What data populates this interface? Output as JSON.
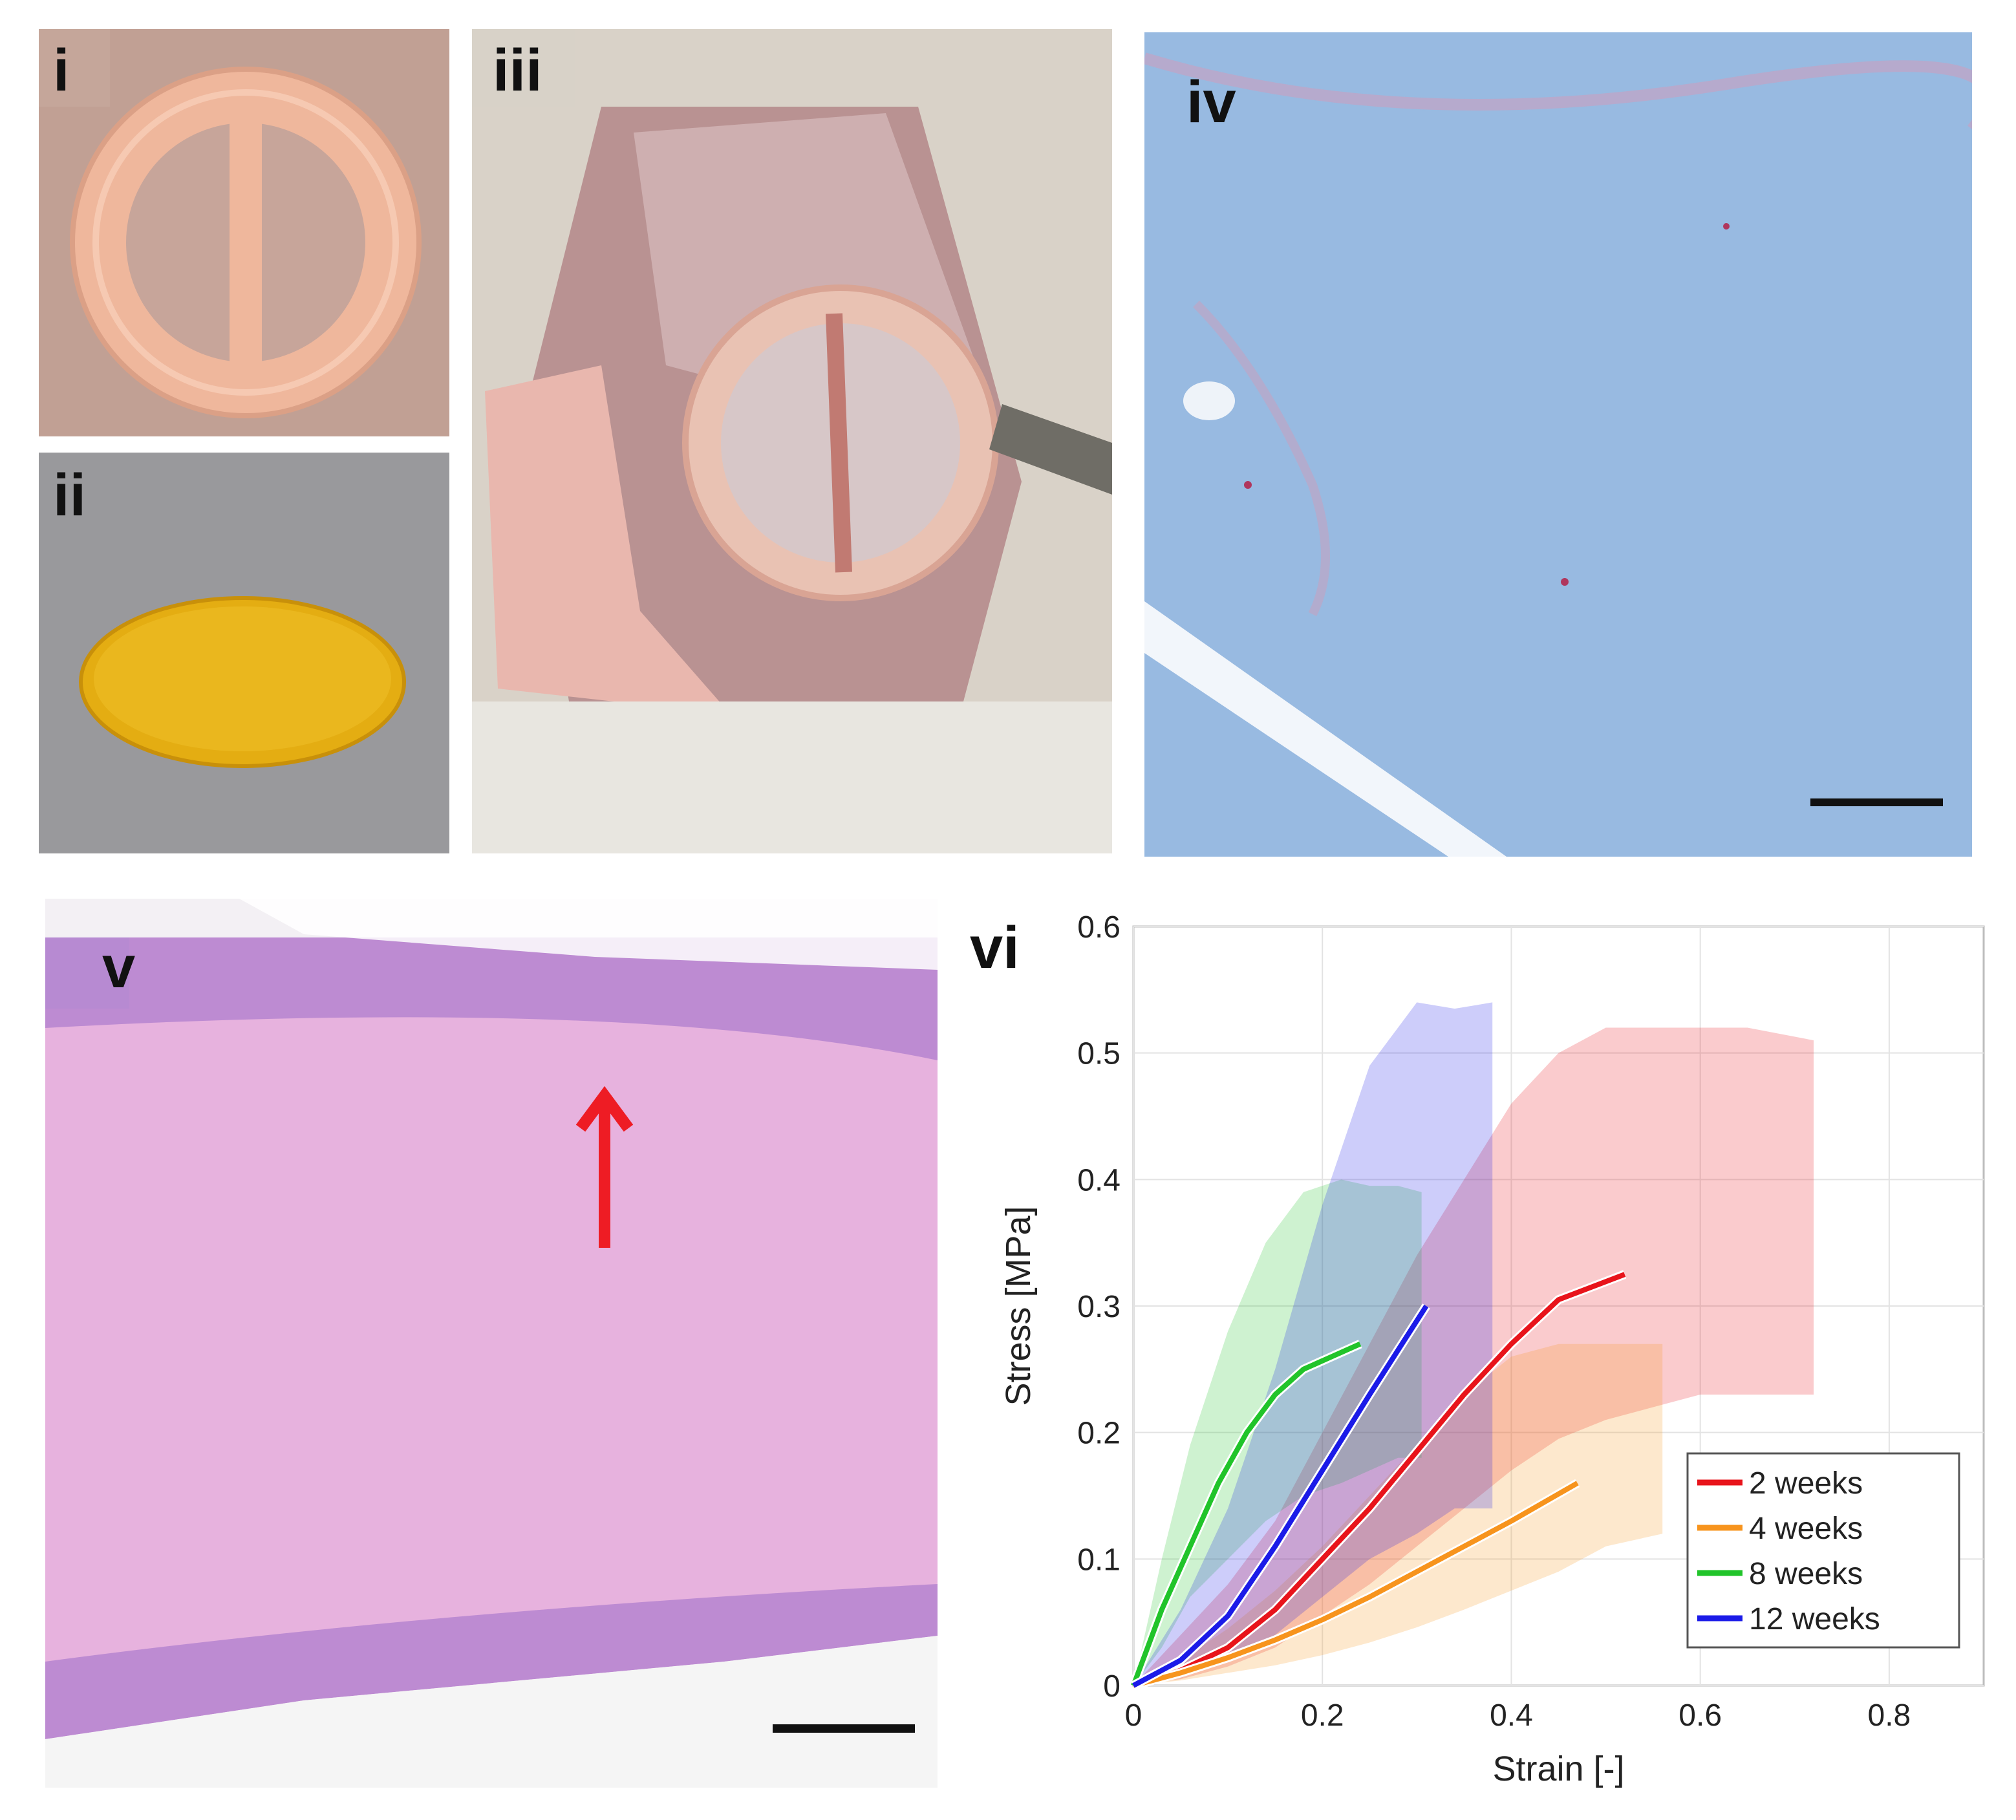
{
  "panels": {
    "i": {
      "label": "i"
    },
    "ii": {
      "label": "ii"
    },
    "iii": {
      "label": "iii"
    },
    "iv": {
      "label": "iv"
    },
    "v": {
      "label": "v"
    },
    "vi": {
      "label": "vi"
    }
  },
  "colors": {
    "ring": "#efb79c",
    "mesh": "#e4ad12",
    "masson_blue": "#8fb4de",
    "he_pink": "#e7b2de",
    "arrow": "#ee1c24"
  },
  "chart_data": {
    "type": "line",
    "xlabel": "Strain [-]",
    "ylabel": "Stress [MPa]",
    "xlim": [
      0,
      0.9
    ],
    "ylim": [
      0,
      0.6
    ],
    "xticks": [
      "0",
      "0.2",
      "0.4",
      "0.6",
      "0.8"
    ],
    "yticks": [
      "0",
      "0.1",
      "0.2",
      "0.3",
      "0.4",
      "0.5",
      "0.6"
    ],
    "grid": true,
    "legend_position": "bottom-right",
    "series": [
      {
        "name": "2 weeks",
        "color": "#e8141b",
        "x": [
          0,
          0.05,
          0.1,
          0.15,
          0.2,
          0.25,
          0.3,
          0.35,
          0.4,
          0.45,
          0.52
        ],
        "y": [
          0,
          0.012,
          0.03,
          0.06,
          0.1,
          0.14,
          0.185,
          0.23,
          0.27,
          0.305,
          0.325
        ],
        "band_upper": [
          0,
          0.04,
          0.08,
          0.13,
          0.2,
          0.27,
          0.34,
          0.4,
          0.46,
          0.5,
          0.52,
          0.52,
          0.52,
          0.52,
          0.51
        ],
        "band_lower": [
          0,
          0.005,
          0.015,
          0.03,
          0.055,
          0.08,
          0.11,
          0.14,
          0.17,
          0.195,
          0.21,
          0.22,
          0.23,
          0.23,
          0.23
        ],
        "band_x": [
          0,
          0.05,
          0.1,
          0.15,
          0.2,
          0.25,
          0.3,
          0.35,
          0.4,
          0.45,
          0.5,
          0.55,
          0.6,
          0.65,
          0.72
        ]
      },
      {
        "name": "4 weeks",
        "color": "#f7941d",
        "x": [
          0,
          0.05,
          0.1,
          0.15,
          0.2,
          0.25,
          0.3,
          0.35,
          0.4,
          0.47
        ],
        "y": [
          0,
          0.01,
          0.022,
          0.036,
          0.052,
          0.07,
          0.09,
          0.11,
          0.13,
          0.16
        ],
        "band_upper": [
          0,
          0.02,
          0.045,
          0.075,
          0.11,
          0.15,
          0.19,
          0.23,
          0.26,
          0.27,
          0.27,
          0.27
        ],
        "band_lower": [
          0,
          0.004,
          0.01,
          0.016,
          0.024,
          0.034,
          0.046,
          0.06,
          0.075,
          0.09,
          0.11,
          0.12
        ],
        "band_x": [
          0,
          0.05,
          0.1,
          0.15,
          0.2,
          0.25,
          0.3,
          0.35,
          0.4,
          0.45,
          0.5,
          0.56
        ]
      },
      {
        "name": "8 weeks",
        "color": "#21c42a",
        "x": [
          0,
          0.03,
          0.06,
          0.09,
          0.12,
          0.15,
          0.18,
          0.21,
          0.24
        ],
        "y": [
          0,
          0.06,
          0.11,
          0.16,
          0.2,
          0.23,
          0.25,
          0.26,
          0.27
        ],
        "band_upper": [
          0,
          0.1,
          0.19,
          0.28,
          0.35,
          0.39,
          0.4,
          0.395,
          0.395,
          0.39
        ],
        "band_lower": [
          0,
          0.03,
          0.07,
          0.1,
          0.13,
          0.15,
          0.16,
          0.17,
          0.18,
          0.18
        ],
        "band_x": [
          0,
          0.03,
          0.06,
          0.1,
          0.14,
          0.18,
          0.22,
          0.25,
          0.28,
          0.305
        ]
      },
      {
        "name": "12 weeks",
        "color": "#1b1be8",
        "x": [
          0,
          0.05,
          0.1,
          0.15,
          0.2,
          0.25,
          0.31
        ],
        "y": [
          0,
          0.02,
          0.055,
          0.11,
          0.17,
          0.23,
          0.3
        ],
        "band_upper": [
          0,
          0.06,
          0.14,
          0.25,
          0.38,
          0.49,
          0.54,
          0.535,
          0.54
        ],
        "band_lower": [
          0,
          0.006,
          0.02,
          0.04,
          0.07,
          0.1,
          0.12,
          0.14,
          0.14
        ],
        "band_x": [
          0,
          0.05,
          0.1,
          0.15,
          0.2,
          0.25,
          0.3,
          0.34,
          0.38
        ]
      }
    ]
  }
}
